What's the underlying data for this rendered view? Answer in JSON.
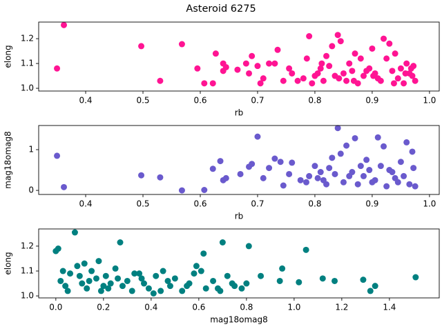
{
  "title": "Asteroid 6275",
  "chart_data": [
    {
      "type": "scatter",
      "x_label": "rb",
      "y_label": "elong",
      "color": "#ff1493",
      "xlim": [
        0.318,
        1.017
      ],
      "ylim": [
        0.989,
        1.267
      ],
      "xticks": [
        0.4,
        0.5,
        0.6,
        0.7,
        0.8,
        0.9,
        {
          "value": 1,
          "label": "1.0"
        }
      ],
      "yticks": [
        {
          "value": 1,
          "label": "1.0"
        },
        1.1,
        1.2
      ],
      "x": [
        0.35,
        0.362,
        0.497,
        0.53,
        0.568,
        0.595,
        0.607,
        0.622,
        0.627,
        0.64,
        0.64,
        0.645,
        0.665,
        0.685,
        0.69,
        0.7,
        0.71,
        0.72,
        0.73,
        0.735,
        0.745,
        0.755,
        0.77,
        0.786,
        0.79,
        0.8,
        0.81,
        0.82,
        0.83,
        0.84,
        0.845,
        0.85,
        0.86,
        0.87,
        0.88,
        0.89,
        0.9,
        0.91,
        0.92,
        0.925,
        0.93,
        0.94,
        0.95,
        0.96,
        0.97,
        0.975,
        0.78,
        0.795,
        0.805,
        0.815,
        0.825,
        0.835,
        0.855,
        0.865,
        0.875,
        0.885,
        0.895,
        0.905,
        0.915,
        0.935,
        0.945,
        0.955,
        0.965,
        0.972,
        0.68,
        0.705,
        0.76,
        0.812,
        0.842,
        0.868,
        0.902,
        0.938,
        0.958,
        0.968
      ],
      "y": [
        1.08,
        1.255,
        1.17,
        1.03,
        1.178,
        1.08,
        1.02,
        1.02,
        1.14,
        1.1,
        1.07,
        1.085,
        1.075,
        1.06,
        1.13,
        1.09,
        1.04,
        1.1,
        1.1,
        1.155,
        1.03,
        1.08,
        1.03,
        1.12,
        1.21,
        1.05,
        1.08,
        1.13,
        1.17,
        1.215,
        1.19,
        1.06,
        1.1,
        1.14,
        1.12,
        1.07,
        1.16,
        1.04,
        1.2,
        1.12,
        1.18,
        1.14,
        1.08,
        1.1,
        1.05,
        1.03,
        1.04,
        1.02,
        1.06,
        1.03,
        1.09,
        1.05,
        1.03,
        1.07,
        1.02,
        1.05,
        1.08,
        1.06,
        1.03,
        1.07,
        1.04,
        1.02,
        1.06,
        1.09,
        1.1,
        1.02,
        1.06,
        1.1,
        1.04,
        1.03,
        1.05,
        1.02,
        1.06,
        1.08
      ]
    },
    {
      "type": "scatter",
      "x_label": "rb",
      "y_label": "mag18omag8",
      "color": "#6a5acd",
      "xlim": [
        0.318,
        1.017
      ],
      "ylim": [
        -0.1,
        1.593
      ],
      "xticks": [
        0.4,
        0.5,
        0.6,
        0.7,
        0.8,
        0.9,
        {
          "value": 1,
          "label": "1.0"
        }
      ],
      "yticks": [
        0,
        1
      ],
      "x": [
        0.35,
        0.362,
        0.497,
        0.53,
        0.568,
        0.607,
        0.622,
        0.635,
        0.64,
        0.645,
        0.67,
        0.685,
        0.69,
        0.7,
        0.71,
        0.72,
        0.73,
        0.74,
        0.745,
        0.755,
        0.76,
        0.775,
        0.79,
        0.8,
        0.81,
        0.82,
        0.83,
        0.84,
        0.845,
        0.855,
        0.86,
        0.87,
        0.88,
        0.89,
        0.9,
        0.91,
        0.92,
        0.93,
        0.94,
        0.95,
        0.96,
        0.97,
        0.975,
        0.785,
        0.805,
        0.815,
        0.825,
        0.835,
        0.85,
        0.865,
        0.875,
        0.885,
        0.895,
        0.905,
        0.915,
        0.925,
        0.935,
        0.945,
        0.955,
        0.965,
        0.972
      ],
      "y": [
        0.85,
        0.08,
        0.37,
        0.32,
        0,
        0.01,
        0.53,
        0.72,
        0.25,
        0.3,
        0.4,
        0.58,
        0.65,
        1.32,
        0.3,
        0.55,
        0.78,
        0.7,
        0.12,
        0.4,
        0.68,
        0.25,
        0.35,
        0.6,
        0.45,
        0.15,
        0.8,
        1.53,
        0.9,
        1.1,
        0.35,
        1.28,
        0.6,
        0.75,
        0.2,
        1.3,
        1.08,
        0.5,
        0.3,
        0.7,
        1.18,
        0.95,
        0.1,
        0.2,
        0.3,
        0.25,
        0.55,
        0.4,
        0.2,
        0.45,
        0.15,
        0.35,
        0.5,
        0.25,
        0.6,
        0.1,
        0.45,
        0.2,
        0.35,
        0.15,
        0.55
      ]
    },
    {
      "type": "scatter",
      "x_label": "mag18omag8",
      "y_label": "elong",
      "color": "#008080",
      "xlim": [
        -0.072,
        1.609
      ],
      "ylim": [
        0.992,
        1.269
      ],
      "xticks": [
        {
          "value": 0,
          "label": "0.0"
        },
        0.2,
        0.4,
        0.6,
        0.8,
        {
          "value": 1,
          "label": "1.0"
        },
        1.2,
        1.4
      ],
      "yticks": [
        {
          "value": 1,
          "label": "1.0"
        },
        1.1,
        1.2
      ],
      "x": [
        0.0,
        0.01,
        0.08,
        0.27,
        0.62,
        0.7,
        0.81,
        1.05,
        0.95,
        1.51,
        1.29,
        1.34,
        1.32,
        1.17,
        1.12,
        1.02,
        0.94,
        0.86,
        0.8,
        0.02,
        0.04,
        0.06,
        0.09,
        0.11,
        0.13,
        0.15,
        0.17,
        0.19,
        0.21,
        0.23,
        0.25,
        0.28,
        0.3,
        0.32,
        0.35,
        0.37,
        0.39,
        0.42,
        0.45,
        0.48,
        0.5,
        0.53,
        0.56,
        0.59,
        0.63,
        0.66,
        0.69,
        0.72,
        0.75,
        0.78,
        0.05,
        0.1,
        0.14,
        0.18,
        0.22,
        0.26,
        0.33,
        0.41,
        0.47,
        0.55,
        0.61,
        0.68,
        0.74,
        0.03,
        0.12,
        0.2,
        0.36,
        0.44,
        0.58
      ],
      "y": [
        1.18,
        1.19,
        1.255,
        1.215,
        1.17,
        1.215,
        1.2,
        1.185,
        1.11,
        1.075,
        1.065,
        1.04,
        1.02,
        1.06,
        1.07,
        1.055,
        1.06,
        1.08,
        1.05,
        1.06,
        1.04,
        1.09,
        1.12,
        1.05,
        1.03,
        1.1,
        1.07,
        1.02,
        1.08,
        1.05,
        1.11,
        1.04,
        1.06,
        1.02,
        1.09,
        1.05,
        1.03,
        1.08,
        1.1,
        1.04,
        1.07,
        1.02,
        1.05,
        1.12,
        1.03,
        1.06,
        1.02,
        1.08,
        1.04,
        1.03,
        1.02,
        1.08,
        1.06,
        1.14,
        1.03,
        1.07,
        1.09,
        1.01,
        1.06,
        1.04,
        1.1,
        1.03,
        1.05,
        1.1,
        1.13,
        1.04,
        1.07,
        1.02,
        1.09
      ]
    }
  ]
}
